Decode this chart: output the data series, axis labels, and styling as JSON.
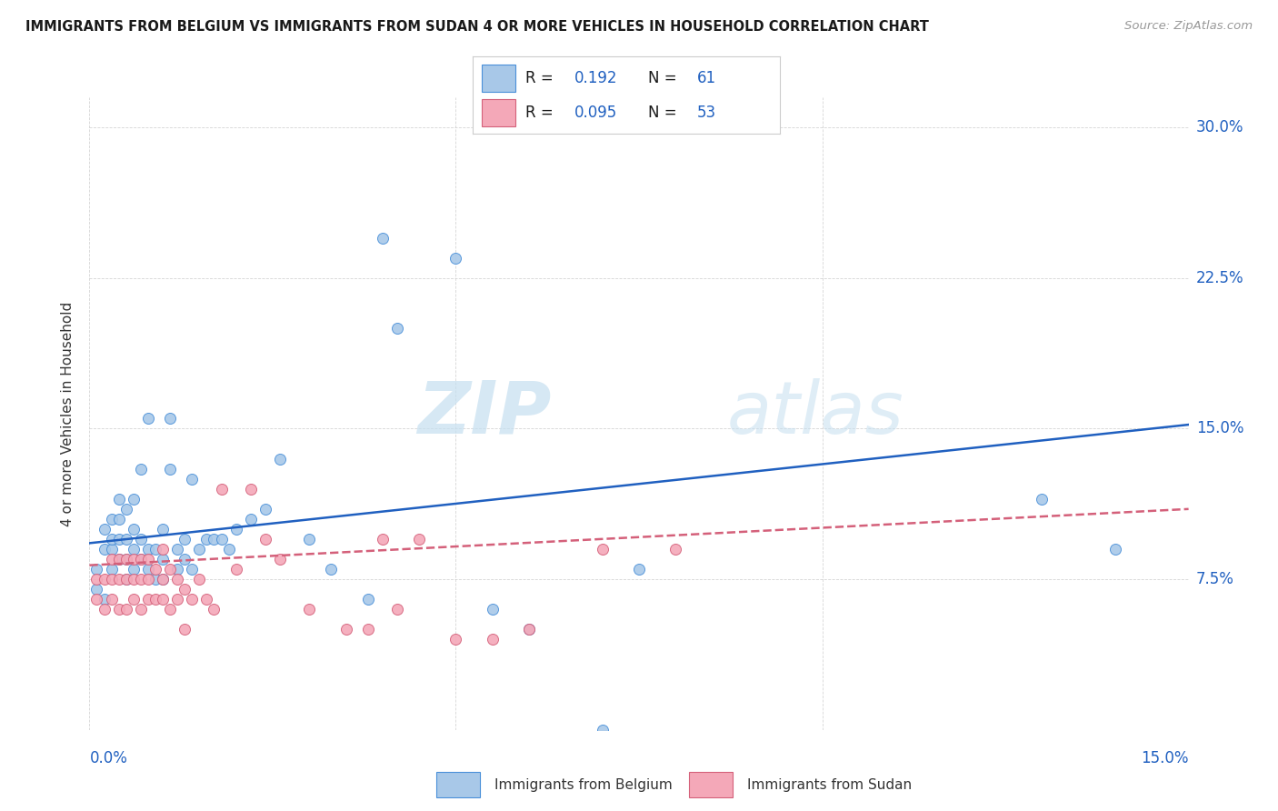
{
  "title": "IMMIGRANTS FROM BELGIUM VS IMMIGRANTS FROM SUDAN 4 OR MORE VEHICLES IN HOUSEHOLD CORRELATION CHART",
  "source": "Source: ZipAtlas.com",
  "ylabel": "4 or more Vehicles in Household",
  "ytick_vals": [
    0.075,
    0.15,
    0.225,
    0.3
  ],
  "ytick_labels": [
    "7.5%",
    "15.0%",
    "22.5%",
    "30.0%"
  ],
  "xlim": [
    0.0,
    0.15
  ],
  "ylim": [
    0.0,
    0.315
  ],
  "belgium_color": "#a8c8e8",
  "belgium_edge_color": "#4a90d9",
  "sudan_color": "#f4a8b8",
  "sudan_edge_color": "#d4607a",
  "belgium_line_color": "#2060c0",
  "sudan_line_color": "#d4607a",
  "watermark_color": "#d8eaf8",
  "belgium_R": 0.192,
  "belgium_N": 61,
  "sudan_R": 0.095,
  "sudan_N": 53,
  "belgium_line_start_y": 0.093,
  "belgium_line_end_y": 0.152,
  "sudan_line_start_y": 0.082,
  "sudan_line_end_y": 0.11,
  "belgium_scatter_x": [
    0.001,
    0.001,
    0.002,
    0.002,
    0.002,
    0.003,
    0.003,
    0.003,
    0.003,
    0.004,
    0.004,
    0.004,
    0.004,
    0.005,
    0.005,
    0.005,
    0.005,
    0.006,
    0.006,
    0.006,
    0.006,
    0.007,
    0.007,
    0.007,
    0.008,
    0.008,
    0.008,
    0.009,
    0.009,
    0.01,
    0.01,
    0.01,
    0.011,
    0.011,
    0.012,
    0.012,
    0.013,
    0.013,
    0.014,
    0.014,
    0.015,
    0.016,
    0.017,
    0.018,
    0.019,
    0.02,
    0.022,
    0.024,
    0.026,
    0.03,
    0.033,
    0.038,
    0.04,
    0.042,
    0.05,
    0.055,
    0.06,
    0.07,
    0.075,
    0.13,
    0.14
  ],
  "belgium_scatter_y": [
    0.07,
    0.08,
    0.065,
    0.09,
    0.1,
    0.08,
    0.09,
    0.095,
    0.105,
    0.085,
    0.095,
    0.105,
    0.115,
    0.075,
    0.085,
    0.095,
    0.11,
    0.08,
    0.09,
    0.1,
    0.115,
    0.085,
    0.095,
    0.13,
    0.08,
    0.09,
    0.155,
    0.075,
    0.09,
    0.075,
    0.085,
    0.1,
    0.13,
    0.155,
    0.08,
    0.09,
    0.085,
    0.095,
    0.08,
    0.125,
    0.09,
    0.095,
    0.095,
    0.095,
    0.09,
    0.1,
    0.105,
    0.11,
    0.135,
    0.095,
    0.08,
    0.065,
    0.245,
    0.2,
    0.235,
    0.06,
    0.05,
    0.0,
    0.08,
    0.115,
    0.09
  ],
  "sudan_scatter_x": [
    0.001,
    0.001,
    0.002,
    0.002,
    0.003,
    0.003,
    0.003,
    0.004,
    0.004,
    0.004,
    0.005,
    0.005,
    0.005,
    0.006,
    0.006,
    0.006,
    0.007,
    0.007,
    0.007,
    0.008,
    0.008,
    0.008,
    0.009,
    0.009,
    0.01,
    0.01,
    0.01,
    0.011,
    0.011,
    0.012,
    0.012,
    0.013,
    0.013,
    0.014,
    0.015,
    0.016,
    0.017,
    0.018,
    0.02,
    0.022,
    0.024,
    0.026,
    0.03,
    0.035,
    0.038,
    0.04,
    0.042,
    0.045,
    0.05,
    0.055,
    0.06,
    0.07,
    0.08
  ],
  "sudan_scatter_y": [
    0.065,
    0.075,
    0.06,
    0.075,
    0.065,
    0.075,
    0.085,
    0.06,
    0.075,
    0.085,
    0.06,
    0.075,
    0.085,
    0.065,
    0.075,
    0.085,
    0.06,
    0.075,
    0.085,
    0.065,
    0.075,
    0.085,
    0.065,
    0.08,
    0.065,
    0.075,
    0.09,
    0.06,
    0.08,
    0.065,
    0.075,
    0.05,
    0.07,
    0.065,
    0.075,
    0.065,
    0.06,
    0.12,
    0.08,
    0.12,
    0.095,
    0.085,
    0.06,
    0.05,
    0.05,
    0.095,
    0.06,
    0.095,
    0.045,
    0.045,
    0.05,
    0.09,
    0.09
  ]
}
